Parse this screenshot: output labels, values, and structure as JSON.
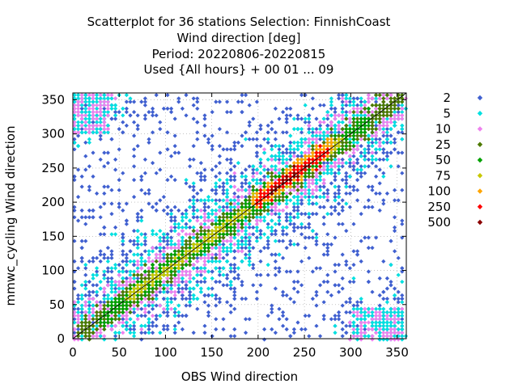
{
  "chart_data": {
    "type": "scatter",
    "title_lines": [
      "Scatterplot for   36 stations Selection: FinnishCoast",
      "Wind direction [deg]",
      "Period: 20220806-20220815",
      "Used {All hours} + 00 01 ... 09"
    ],
    "xlabel": "OBS Wind direction",
    "ylabel": "mmwc_cycling Wind direction",
    "xlim": [
      0,
      360
    ],
    "ylim": [
      0,
      360
    ],
    "xticks": [
      0,
      50,
      100,
      150,
      200,
      250,
      300,
      350
    ],
    "yticks": [
      0,
      50,
      100,
      150,
      200,
      250,
      300,
      350
    ],
    "grid": true,
    "diagonal_line": true,
    "legend_position": "right",
    "legend": [
      {
        "label": "2",
        "color": "#4060d0"
      },
      {
        "label": "5",
        "color": "#00e0e0"
      },
      {
        "label": "10",
        "color": "#ee82ee"
      },
      {
        "label": "25",
        "color": "#4d7a00"
      },
      {
        "label": "50",
        "color": "#00a000"
      },
      {
        "label": "75",
        "color": "#c8c800"
      },
      {
        "label": "100",
        "color": "#ffa500"
      },
      {
        "label": "250",
        "color": "#ff0000"
      },
      {
        "label": "500",
        "color": "#8b0000"
      }
    ]
  }
}
